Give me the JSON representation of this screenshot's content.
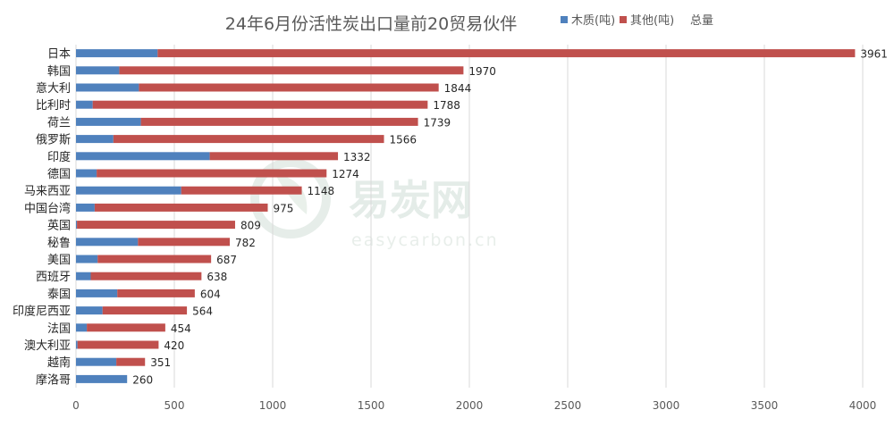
{
  "colors": {
    "wood": "#4f81bd",
    "other": "#c0504d",
    "grid": "#d9d9d9",
    "text": "#595959"
  },
  "watermark": {
    "name": "易炭网",
    "domain": "easycarbon.cn"
  },
  "chart_data": {
    "type": "bar",
    "orientation": "horizontal",
    "stacked": true,
    "title": "24年6月份活性炭出口量前20贸易伙伴",
    "legend_position": "top-right",
    "legend": [
      "木质(吨)",
      "其他(吨)",
      "总量"
    ],
    "categories": [
      "日本",
      "韩国",
      "意大利",
      "比利时",
      "荷兰",
      "俄罗斯",
      "印度",
      "德国",
      "马来西亚",
      "中国台湾",
      "英国",
      "秘鲁",
      "美国",
      "西班牙",
      "泰国",
      "印度尼西亚",
      "法国",
      "澳大利亚",
      "越南",
      "摩洛哥"
    ],
    "series": [
      {
        "name": "木质(吨)",
        "color": "#4f81bd",
        "values": [
          415,
          220,
          320,
          85,
          330,
          190,
          680,
          105,
          535,
          95,
          5,
          315,
          110,
          75,
          210,
          135,
          55,
          8,
          205,
          260
        ]
      },
      {
        "name": "其他(吨)",
        "color": "#c0504d",
        "values": [
          3546,
          1750,
          1524,
          1703,
          1409,
          1376,
          652,
          1169,
          613,
          880,
          804,
          467,
          577,
          563,
          394,
          429,
          399,
          412,
          146,
          0
        ]
      }
    ],
    "totals": [
      3961,
      1970,
      1844,
      1788,
      1739,
      1566,
      1332,
      1274,
      1148,
      975,
      809,
      782,
      687,
      638,
      604,
      564,
      454,
      420,
      351,
      260
    ],
    "xlim": [
      0,
      4000
    ],
    "xticks": [
      0,
      500,
      1000,
      1500,
      2000,
      2500,
      3000,
      3500,
      4000
    ],
    "grid": true
  }
}
